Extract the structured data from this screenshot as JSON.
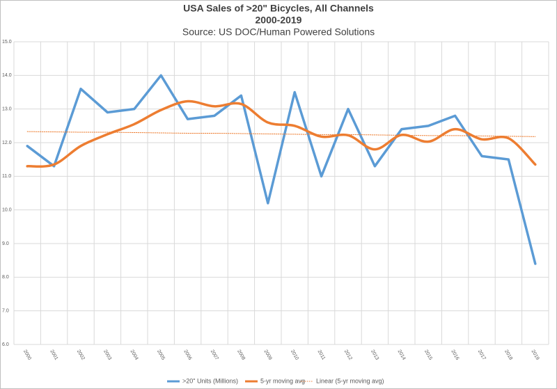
{
  "chart_data": {
    "type": "line",
    "title": "USA Sales of >20\" Bicycles, All Channels",
    "title_line2": "2000-2019",
    "subtitle": "Source: US DOC/Human Powered Solutions",
    "categories": [
      "2000",
      "2001",
      "2002",
      "2003",
      "2004",
      "2005",
      "2006",
      "2007",
      "2008",
      "2009",
      "2010",
      "2011",
      "2012",
      "2013",
      "2014",
      "2015",
      "2016",
      "2017",
      "2018",
      "2019"
    ],
    "series": [
      {
        "name": ">20\" Units (Millions)",
        "color": "#5b9bd5",
        "style": "solid",
        "values": [
          11.9,
          11.3,
          13.6,
          12.9,
          13.0,
          14.0,
          12.7,
          12.8,
          13.4,
          10.2,
          13.5,
          11.0,
          13.0,
          11.3,
          12.4,
          12.5,
          12.8,
          11.6,
          11.5,
          8.4
        ]
      },
      {
        "name": "5-yr moving avg",
        "color": "#ed7d31",
        "style": "smooth",
        "values": [
          11.3,
          11.35,
          11.9,
          12.25,
          12.55,
          12.97,
          13.23,
          13.08,
          13.15,
          12.6,
          12.5,
          12.18,
          12.22,
          11.8,
          12.23,
          12.03,
          12.4,
          12.1,
          12.13,
          11.35
        ]
      },
      {
        "name": "Linear (5-yr moving avg)",
        "color": "#ed7d31",
        "style": "dotted",
        "values": [
          12.33,
          12.32,
          12.31,
          12.31,
          12.3,
          12.29,
          12.28,
          12.28,
          12.27,
          12.26,
          12.25,
          12.24,
          12.24,
          12.23,
          12.22,
          12.21,
          12.21,
          12.2,
          12.19,
          12.18
        ]
      }
    ],
    "ylim": [
      6,
      15
    ],
    "yticks": [
      {
        "value": 6,
        "label": "6.0"
      },
      {
        "value": 7,
        "label": "7.0"
      },
      {
        "value": 8,
        "label": "8.0"
      },
      {
        "value": 9,
        "label": "9.0"
      },
      {
        "value": 10,
        "label": "10.0"
      },
      {
        "value": 11,
        "label": "11.0"
      },
      {
        "value": 12,
        "label": "12.0"
      },
      {
        "value": 13,
        "label": "13.0"
      },
      {
        "value": 14,
        "label": "14.0"
      },
      {
        "value": 15,
        "label": "15.0"
      }
    ],
    "grid": true,
    "legend": "bottom"
  }
}
